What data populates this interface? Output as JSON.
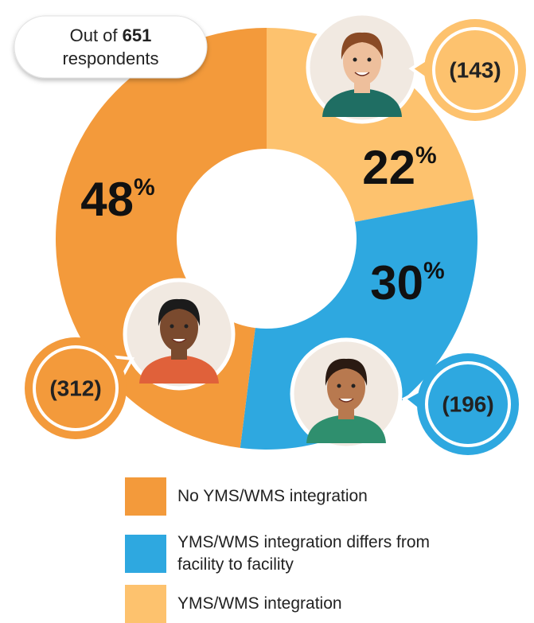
{
  "chart_data": {
    "type": "donut",
    "note": {
      "before": "Out of",
      "total": 651,
      "after": "respondents"
    },
    "categories": [
      "No YMS/WMS integration",
      "YMS/WMS integration differs from facility to facility",
      "YMS/WMS integration"
    ],
    "values": [
      48,
      30,
      22
    ],
    "value_labels": [
      "48%",
      "30%",
      "22%"
    ],
    "counts": [
      312,
      196,
      143
    ],
    "count_labels": [
      "(312)",
      "(196)",
      "(143)"
    ],
    "colors": [
      "#F39A3B",
      "#2EA8E0",
      "#FDC26E"
    ]
  }
}
